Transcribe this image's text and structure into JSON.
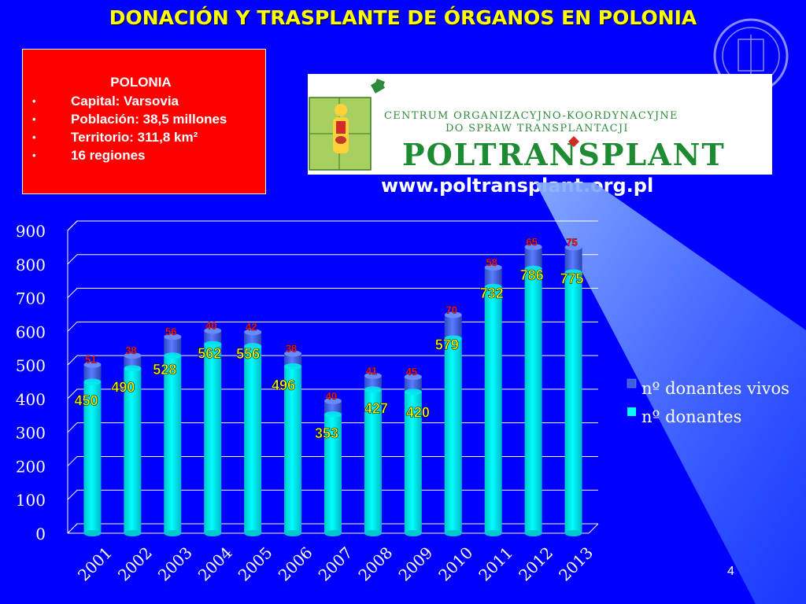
{
  "slide": {
    "title": "DONACIÓN Y TRASPLANTE DE ÓRGANOS EN POLONIA",
    "number": "4"
  },
  "info_box": {
    "heading": "POLONIA",
    "items": [
      "Capital: Varsovia",
      "Población: 38,5 millones",
      "Territorio: 311,8 km²",
      "16 regiones"
    ]
  },
  "logo": {
    "line1": "CENTRUM ORGANIZACYJNO-KOORDYNACYJNE",
    "line2": "DO SPRAW TRANSPLANTACJI",
    "name": "POLTRANSPLANT",
    "website": "www.poltransplant.org.pl"
  },
  "colors": {
    "background": "#0000ff",
    "title": "#ffff00",
    "info_box": "#ff0000",
    "series_living": "#3a5fe0",
    "series_donors": "#00ffff",
    "label_living": "#ff1a1a",
    "label_donors": "#ffff00"
  },
  "chart_data": {
    "type": "bar",
    "stacked": true,
    "categories": [
      "2001",
      "2002",
      "2003",
      "2004",
      "2005",
      "2006",
      "2007",
      "2008",
      "2009",
      "2010",
      "2011",
      "2012",
      "2013"
    ],
    "series": [
      {
        "name": "nº donantes",
        "values": [
          450,
          490,
          528,
          562,
          556,
          496,
          353,
          427,
          420,
          579,
          732,
          786,
          775
        ]
      },
      {
        "name": "nº donantes vivos",
        "values": [
          51,
          38,
          56,
          40,
          42,
          38,
          40,
          41,
          45,
          70,
          58,
          65,
          75
        ]
      }
    ],
    "legend": [
      "nº donantes vivos",
      "nº donantes"
    ],
    "legend_position": "right",
    "ylim": [
      0,
      900
    ],
    "yticks": [
      "0",
      "100",
      "200",
      "300",
      "400",
      "500",
      "600",
      "700",
      "800",
      "900"
    ],
    "grid": true
  }
}
